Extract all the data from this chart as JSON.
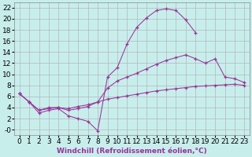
{
  "xlabel": "Windchill (Refroidissement éolien,°C)",
  "bg_color": "#c8eeec",
  "grid_color": "#b0b8b8",
  "line_color": "#993399",
  "xlim": [
    -0.5,
    23.5
  ],
  "ylim": [
    -1.0,
    23.0
  ],
  "xticks": [
    0,
    1,
    2,
    3,
    4,
    5,
    6,
    7,
    8,
    9,
    10,
    11,
    12,
    13,
    14,
    15,
    16,
    17,
    18,
    19,
    20,
    21,
    22,
    23
  ],
  "yticks": [
    0,
    2,
    4,
    6,
    8,
    10,
    12,
    14,
    16,
    18,
    20,
    22
  ],
  "ytick_labels": [
    "-0",
    "2",
    "4",
    "6",
    "8",
    "10",
    "12",
    "14",
    "16",
    "18",
    "20",
    "22"
  ],
  "line1_x": [
    0,
    1,
    2,
    3,
    4,
    5,
    6,
    7,
    8,
    9,
    10,
    11,
    12,
    13,
    14,
    15,
    16,
    17,
    18
  ],
  "line1_y": [
    6.5,
    5.0,
    3.0,
    3.5,
    3.8,
    2.5,
    2.0,
    1.5,
    -0.2,
    9.5,
    11.2,
    15.5,
    18.5,
    20.2,
    21.5,
    21.8,
    21.5,
    19.8,
    17.5
  ],
  "line2_x": [
    0,
    1,
    2,
    3,
    4,
    5,
    6,
    7,
    8,
    9,
    10,
    11,
    12,
    13,
    14,
    15,
    16,
    17,
    18,
    19,
    20,
    21,
    22,
    23
  ],
  "line2_y": [
    6.5,
    5.0,
    3.5,
    4.0,
    4.0,
    3.5,
    3.8,
    4.2,
    5.0,
    7.5,
    8.8,
    9.5,
    10.2,
    11.0,
    11.8,
    12.5,
    13.0,
    13.5,
    12.8,
    12.0,
    12.8,
    9.5,
    9.2,
    8.5
  ],
  "line3_x": [
    0,
    1,
    2,
    3,
    4,
    5,
    6,
    7,
    8,
    9,
    10,
    11,
    12,
    13,
    14,
    15,
    16,
    17,
    18,
    19,
    20,
    21,
    22,
    23
  ],
  "line3_y": [
    6.5,
    5.0,
    3.5,
    3.8,
    4.0,
    3.8,
    4.2,
    4.5,
    5.0,
    5.5,
    5.8,
    6.1,
    6.4,
    6.7,
    7.0,
    7.2,
    7.4,
    7.6,
    7.8,
    7.9,
    8.0,
    8.1,
    8.2,
    8.0
  ],
  "font_size": 6.5
}
